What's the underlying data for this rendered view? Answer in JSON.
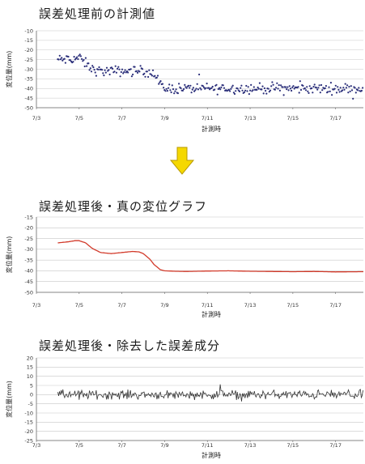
{
  "chart_data": [
    {
      "type": "scatter",
      "title": "誤差処理前の計測値",
      "xlabel": "計測時",
      "ylabel": "変位量(mm)",
      "ylim": [
        -50,
        -10
      ],
      "yticks": [
        -10,
        -15,
        -20,
        -25,
        -30,
        -35,
        -40,
        -45,
        -50
      ],
      "xlim": [
        3,
        18.3
      ],
      "xticks": [
        "7/3",
        "7/5",
        "7/7",
        "7/9",
        "7/11",
        "7/13",
        "7/15",
        "7/17"
      ],
      "grid": "horizontal",
      "marker_color": "#2b2f7a",
      "series": [
        {
          "x": [
            4.0,
            4.5,
            5.0,
            5.3,
            5.6,
            6.0,
            6.5,
            7.0,
            7.5,
            8.0,
            8.3,
            8.5,
            8.8,
            9.0,
            9.5,
            10.0,
            11.0,
            12.0,
            13.0,
            14.0,
            15.0,
            16.0,
            17.0,
            18.3
          ],
          "y": [
            -25,
            -25,
            -24,
            -27,
            -30,
            -31,
            -31,
            -31,
            -31,
            -31,
            -31,
            -33,
            -38,
            -40,
            -40,
            -40,
            -40,
            -40,
            -40,
            -40,
            -40,
            -40,
            -40,
            -40
          ]
        }
      ]
    },
    {
      "type": "line",
      "title": "誤差処理後・真の変位グラフ",
      "xlabel": "計測時",
      "ylabel": "変位量(mm)",
      "ylim": [
        -50,
        -15
      ],
      "yticks": [
        -15,
        -20,
        -25,
        -30,
        -35,
        -40,
        -45,
        -50
      ],
      "xlim": [
        3,
        18.3
      ],
      "xticks": [
        "7/3",
        "7/5",
        "7/7",
        "7/9",
        "7/11",
        "7/13",
        "7/15",
        "7/17"
      ],
      "grid": "horizontal",
      "line_color": "#d23a2a",
      "series": [
        {
          "x": [
            4.0,
            4.5,
            4.8,
            5.0,
            5.3,
            5.6,
            6.0,
            6.5,
            7.0,
            7.5,
            7.8,
            8.0,
            8.3,
            8.5,
            8.8,
            9.0,
            9.5,
            10.0,
            11.0,
            12.0,
            13.0,
            14.0,
            15.0,
            16.0,
            17.0,
            18.3
          ],
          "y": [
            -27,
            -26.5,
            -26,
            -26,
            -27,
            -29.5,
            -31.5,
            -32,
            -31.5,
            -31,
            -31.2,
            -32,
            -34.5,
            -37,
            -39.5,
            -40,
            -40.2,
            -40.3,
            -40.1,
            -40.0,
            -40.2,
            -40.3,
            -40.4,
            -40.3,
            -40.5,
            -40.4
          ]
        }
      ]
    },
    {
      "type": "line",
      "title": "誤差処理後・除去した誤差成分",
      "xlabel": "計測時",
      "ylabel": "変位量(mm)",
      "ylim": [
        -25,
        20
      ],
      "yticks": [
        20,
        15,
        10,
        5,
        0,
        -5,
        -10,
        -15,
        -20,
        -25
      ],
      "xlim": [
        3,
        18.3
      ],
      "xticks": [
        "7/3",
        "7/5",
        "7/7",
        "7/9",
        "7/11",
        "7/13",
        "7/15",
        "7/17"
      ],
      "grid": "horizontal",
      "line_color": "#333333",
      "series": [
        {
          "x": [
            4.0,
            18.3
          ],
          "y": [
            0,
            0
          ]
        }
      ]
    }
  ],
  "arrow_color": "#f5d800"
}
